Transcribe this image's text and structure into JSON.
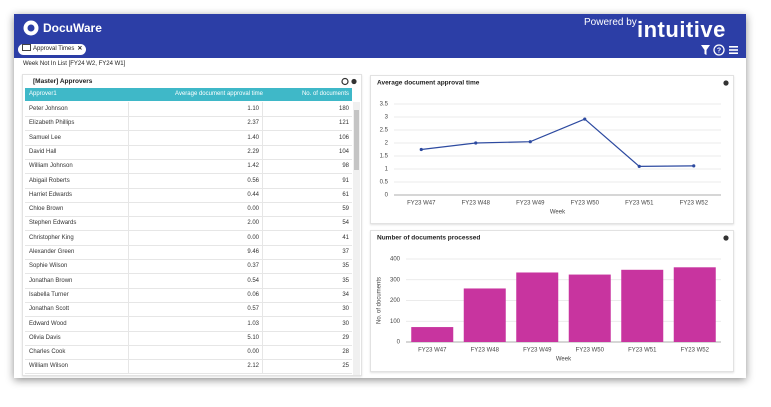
{
  "header": {
    "brand": "DocuWare",
    "powered_by": "Powered by",
    "partner": "intuitive",
    "filter_chip": "Approval Times",
    "filter_text": "Week Not In List [FY24 W2, FY24 W1]"
  },
  "table": {
    "title": "[Master] Approvers",
    "columns": [
      "Approver1",
      "Average document approval time",
      "No. of documents"
    ],
    "rows": [
      [
        "Peter Johnson",
        "1.10",
        "180"
      ],
      [
        "Elizabeth Phillips",
        "2.37",
        "121"
      ],
      [
        "Samuel Lee",
        "1.40",
        "106"
      ],
      [
        "David Hall",
        "2.29",
        "104"
      ],
      [
        "William Johnson",
        "1.42",
        "98"
      ],
      [
        "Abigail Roberts",
        "0.56",
        "91"
      ],
      [
        "Harriet Edwards",
        "0.44",
        "61"
      ],
      [
        "Chloe Brown",
        "0.00",
        "59"
      ],
      [
        "Stephen Edwards",
        "2.00",
        "54"
      ],
      [
        "Christopher King",
        "0.00",
        "41"
      ],
      [
        "Alexander Green",
        "9.46",
        "37"
      ],
      [
        "Sophie Wilson",
        "0.37",
        "35"
      ],
      [
        "Jonathan Brown",
        "0.54",
        "35"
      ],
      [
        "Isabella Turner",
        "0.06",
        "34"
      ],
      [
        "Jonathan Scott",
        "0.57",
        "30"
      ],
      [
        "Edward Wood",
        "1.03",
        "30"
      ],
      [
        "Olivia Davis",
        "5.10",
        "29"
      ],
      [
        "Charles Cook",
        "0.00",
        "28"
      ],
      [
        "William Wilson",
        "2.12",
        "25"
      ]
    ]
  },
  "chart_data": [
    {
      "type": "line",
      "title": "Average document approval time",
      "categories": [
        "FY23 W47",
        "FY23 W48",
        "FY23 W49",
        "FY23 W50",
        "FY23 W51",
        "FY23 W52"
      ],
      "values": [
        1.75,
        2.0,
        2.05,
        2.92,
        1.1,
        1.12
      ],
      "color": "#2d4aa0",
      "x_label": "Week",
      "ylim": [
        0,
        3.5
      ],
      "yticks": [
        0,
        0.5,
        1,
        1.5,
        2,
        2.5,
        3,
        3.5
      ],
      "grid": true
    },
    {
      "type": "bar",
      "title": "Number of documents processed",
      "categories": [
        "FY23 W47",
        "FY23 W48",
        "FY23 W49",
        "FY23 W50",
        "FY23 W51",
        "FY23 W52"
      ],
      "values": [
        72,
        258,
        335,
        325,
        348,
        360
      ],
      "color": "#c8349f",
      "x_label": "Week",
      "y_label": "No. of documents",
      "ylim": [
        0,
        400
      ],
      "yticks": [
        0,
        100,
        200,
        300,
        400
      ],
      "grid": true
    }
  ]
}
